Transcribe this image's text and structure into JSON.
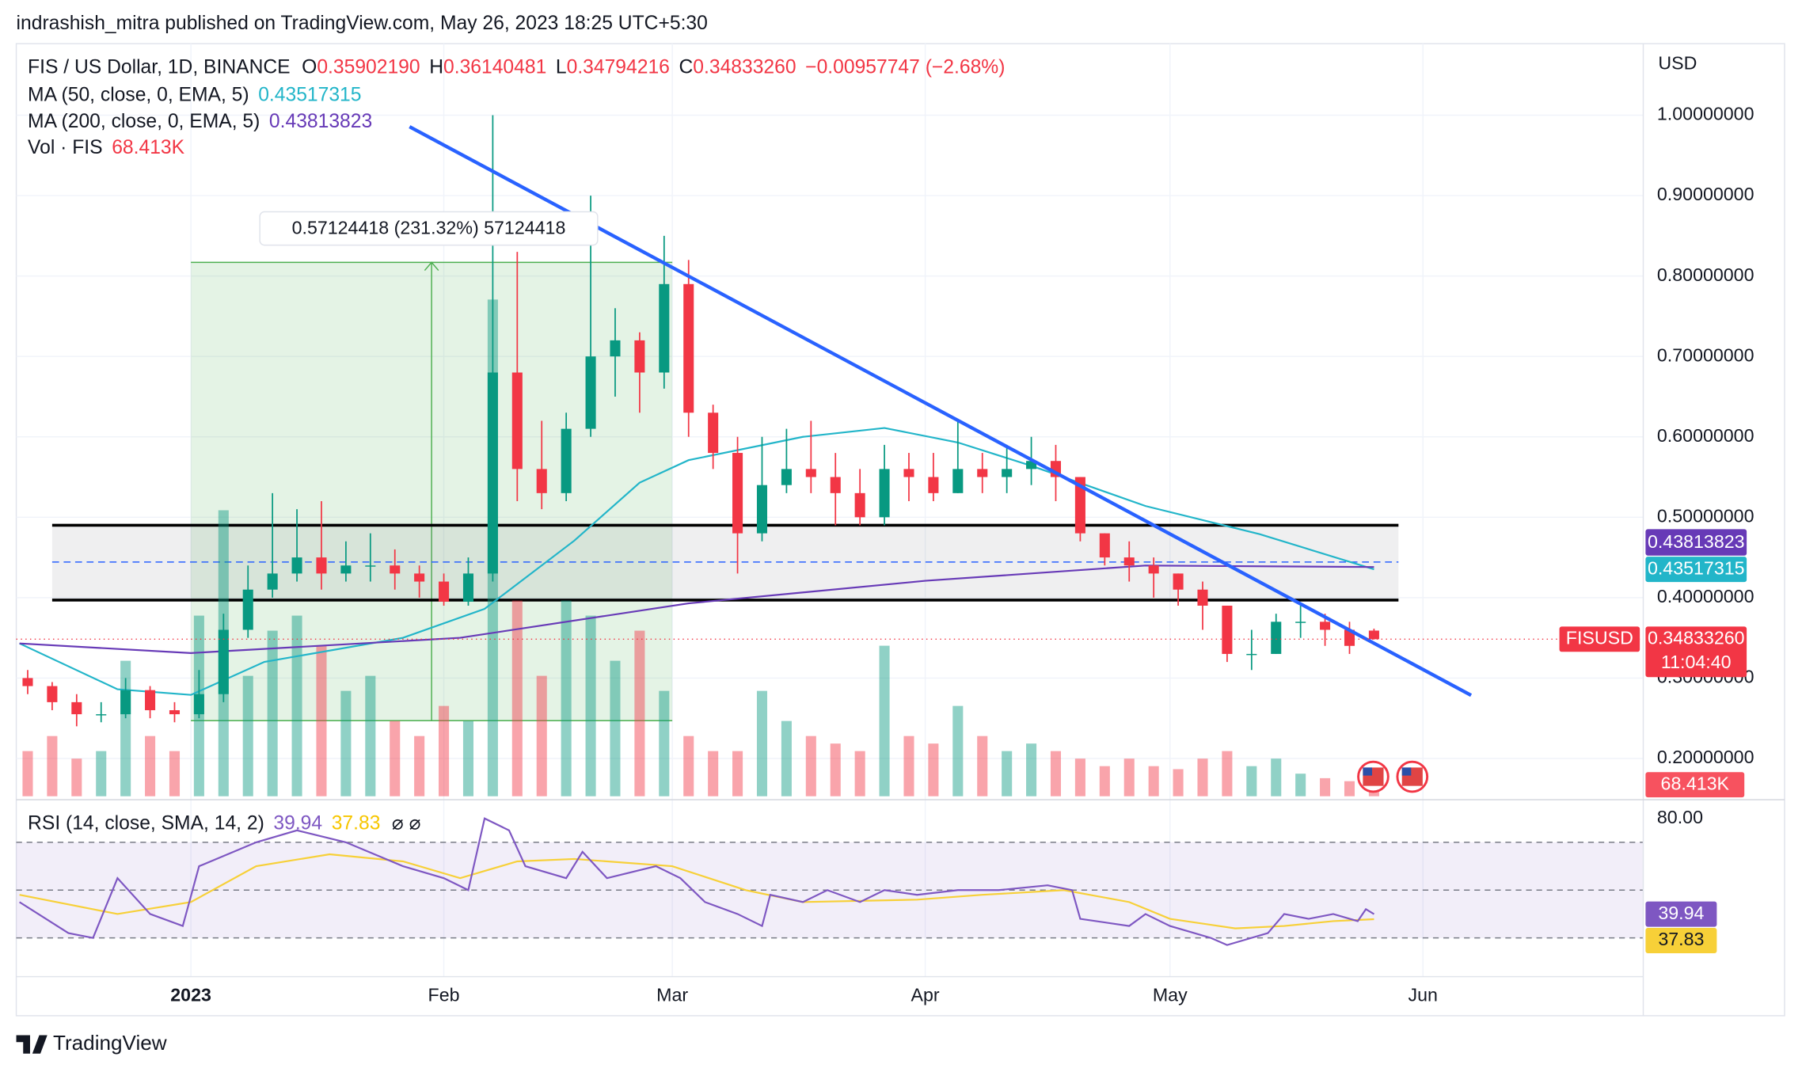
{
  "header": {
    "publisher": "indrashish_mitra published on TradingView.com, May 26, 2023 18:25 UTC+5:30",
    "brand": "TradingView"
  },
  "chart_data": {
    "type": "candlestick",
    "title": "FIS / US Dollar, 1D, BINANCE",
    "ohlc_legend": {
      "o_label": "O",
      "o": "0.35902190",
      "h_label": "H",
      "h": "0.36140481",
      "l_label": "L",
      "l": "0.34794216",
      "c_label": "C",
      "c": "0.34833260",
      "change": "−0.00957747 (−2.68%)"
    },
    "currency": "USD",
    "xlim": [
      -21.4,
      178
    ],
    "xticks": [
      {
        "value": 0,
        "label": "2023"
      },
      {
        "value": 31,
        "label": "Feb"
      },
      {
        "value": 59,
        "label": "Mar"
      },
      {
        "value": 90,
        "label": "Apr"
      },
      {
        "value": 120,
        "label": "May"
      },
      {
        "value": 151,
        "label": "Jun"
      }
    ],
    "ylim": [
      0.153,
      1.089
    ],
    "yticks": [
      {
        "value": 1.0,
        "label": "1.00000000"
      },
      {
        "value": 0.9,
        "label": "0.90000000"
      },
      {
        "value": 0.8,
        "label": "0.80000000"
      },
      {
        "value": 0.7,
        "label": "0.70000000"
      },
      {
        "value": 0.6,
        "label": "0.60000000"
      },
      {
        "value": 0.5,
        "label": "0.50000000"
      },
      {
        "value": 0.4,
        "label": "0.40000000"
      },
      {
        "value": 0.3,
        "label": "0.30000000"
      },
      {
        "value": 0.2,
        "label": "0.20000000"
      }
    ],
    "grid": true,
    "up_color": "#089981",
    "down_color": "#f23645",
    "candles": {
      "x": [
        -20,
        -17,
        -14,
        -11,
        -8,
        -5,
        -2,
        1,
        4,
        7,
        10,
        13,
        16,
        19,
        22,
        25,
        28,
        31,
        34,
        37,
        40,
        43,
        46,
        49,
        52,
        55,
        58,
        61,
        64,
        67,
        70,
        73,
        76,
        79,
        82,
        85,
        88,
        91,
        94,
        97,
        100,
        103,
        106,
        109,
        112,
        115,
        118,
        121,
        124,
        127,
        130,
        133,
        136,
        139,
        142,
        145
      ],
      "open": [
        0.3,
        0.29,
        0.27,
        0.255,
        0.255,
        0.285,
        0.26,
        0.255,
        0.28,
        0.36,
        0.41,
        0.43,
        0.45,
        0.43,
        0.44,
        0.44,
        0.43,
        0.42,
        0.395,
        0.43,
        0.68,
        0.56,
        0.53,
        0.61,
        0.7,
        0.72,
        0.68,
        0.79,
        0.63,
        0.58,
        0.48,
        0.54,
        0.56,
        0.55,
        0.53,
        0.5,
        0.56,
        0.55,
        0.53,
        0.56,
        0.55,
        0.56,
        0.57,
        0.55,
        0.48,
        0.45,
        0.44,
        0.43,
        0.41,
        0.39,
        0.33,
        0.33,
        0.37,
        0.37,
        0.36,
        0.3590219
      ],
      "high": [
        0.31,
        0.295,
        0.28,
        0.27,
        0.3,
        0.29,
        0.27,
        0.31,
        0.38,
        0.44,
        0.53,
        0.51,
        0.52,
        0.47,
        0.48,
        0.46,
        0.44,
        0.43,
        0.45,
        1.0,
        0.83,
        0.62,
        0.63,
        0.9,
        0.76,
        0.73,
        0.85,
        0.82,
        0.64,
        0.6,
        0.6,
        0.61,
        0.62,
        0.58,
        0.56,
        0.59,
        0.58,
        0.58,
        0.62,
        0.58,
        0.59,
        0.6,
        0.59,
        0.55,
        0.48,
        0.47,
        0.45,
        0.43,
        0.42,
        0.39,
        0.36,
        0.38,
        0.39,
        0.38,
        0.37,
        0.36140481
      ],
      "low": [
        0.28,
        0.26,
        0.24,
        0.245,
        0.25,
        0.25,
        0.245,
        0.25,
        0.27,
        0.35,
        0.4,
        0.42,
        0.41,
        0.42,
        0.42,
        0.41,
        0.4,
        0.39,
        0.39,
        0.42,
        0.52,
        0.51,
        0.52,
        0.6,
        0.65,
        0.63,
        0.66,
        0.6,
        0.56,
        0.43,
        0.47,
        0.53,
        0.53,
        0.49,
        0.49,
        0.49,
        0.52,
        0.52,
        0.53,
        0.53,
        0.53,
        0.54,
        0.52,
        0.47,
        0.44,
        0.42,
        0.4,
        0.39,
        0.36,
        0.32,
        0.31,
        0.33,
        0.35,
        0.34,
        0.33,
        0.34794216
      ],
      "close": [
        0.29,
        0.27,
        0.255,
        0.255,
        0.285,
        0.26,
        0.255,
        0.28,
        0.36,
        0.41,
        0.43,
        0.45,
        0.43,
        0.44,
        0.44,
        0.43,
        0.42,
        0.395,
        0.43,
        0.68,
        0.56,
        0.53,
        0.61,
        0.7,
        0.72,
        0.68,
        0.79,
        0.63,
        0.58,
        0.48,
        0.54,
        0.56,
        0.55,
        0.53,
        0.5,
        0.56,
        0.55,
        0.53,
        0.56,
        0.55,
        0.56,
        0.57,
        0.55,
        0.48,
        0.45,
        0.44,
        0.43,
        0.41,
        0.39,
        0.33,
        0.33,
        0.37,
        0.37,
        0.36,
        0.34,
        0.3483326
      ],
      "volume": [
        300000,
        400000,
        250000,
        300000,
        900000,
        400000,
        300000,
        1200000,
        1900000,
        800000,
        1100000,
        1200000,
        1000000,
        700000,
        800000,
        500000,
        400000,
        600000,
        500000,
        3300000,
        1300000,
        800000,
        1300000,
        1200000,
        900000,
        1100000,
        700000,
        400000,
        300000,
        300000,
        700000,
        500000,
        400000,
        350000,
        300000,
        1000000,
        400000,
        350000,
        600000,
        400000,
        300000,
        350000,
        300000,
        250000,
        200000,
        250000,
        200000,
        180000,
        250000,
        300000,
        200000,
        250000,
        150000,
        120000,
        100000,
        68413
      ]
    },
    "volume_name": "Vol · FIS",
    "volume_label": "68.413K",
    "volume_ylim": [
      0,
      5000000
    ],
    "series": [
      {
        "name": "MA (50, close, 0, EMA, 5)",
        "last_label": "0.43517315",
        "color": "#22b5c9",
        "x": [
          -21,
          -9,
          0,
          9,
          26,
          36,
          47,
          55,
          61,
          75,
          85,
          94,
          103,
          117,
          131,
          145
        ],
        "values": [
          0.343,
          0.286,
          0.279,
          0.32,
          0.35,
          0.386,
          0.471,
          0.543,
          0.571,
          0.6,
          0.611,
          0.593,
          0.564,
          0.514,
          0.479,
          0.43517315
        ]
      },
      {
        "name": "MA (200, close, 0, EMA, 5)",
        "last_label": "0.43813823",
        "color": "#673ab7",
        "x": [
          -21,
          0,
          33,
          61,
          90,
          117,
          145
        ],
        "values": [
          0.343,
          0.331,
          0.35,
          0.393,
          0.421,
          0.44,
          0.43813823
        ]
      }
    ],
    "last_price": {
      "symbol": "FISUSD",
      "value": 0.3483326,
      "label": "0.34833260",
      "countdown": "11:04:40"
    },
    "annotations": {
      "measure": {
        "label": "0.57124418 (231.32%) 57124418",
        "x": [
          0,
          59
        ],
        "y": [
          0.247,
          0.817
        ]
      },
      "trendline": {
        "x": [
          26.8,
          156.9
        ],
        "y": [
          0.9857,
          0.2786
        ]
      },
      "zone": {
        "x": [
          -17,
          148
        ],
        "y": [
          0.397,
          0.49
        ],
        "mid": 0.4443
      }
    },
    "rsi": {
      "name": "RSI (14, close, SMA, 14, 2)",
      "last_label": "39.94",
      "ma_last_label": "37.83",
      "extra": "⌀ ⌀",
      "color": "#7e57c2",
      "ma_color": "#f7d038",
      "ylim": [
        13.8,
        85.9
      ],
      "yticks": [
        {
          "value": 80,
          "label": "80.00"
        }
      ],
      "bands": [
        30,
        50,
        70
      ],
      "x": [
        -21,
        -15,
        -12,
        -9,
        -5,
        -1,
        1,
        8,
        13,
        19,
        26,
        31,
        34,
        36,
        39,
        41,
        46,
        48,
        51,
        57,
        60,
        63,
        67,
        70,
        71,
        75,
        78,
        82,
        85,
        89,
        94,
        99,
        105,
        108,
        109,
        115,
        117,
        120,
        125,
        127,
        132,
        134,
        137,
        140,
        143,
        144,
        145
      ],
      "values": [
        45,
        32,
        30,
        55,
        40,
        35,
        60,
        70,
        75,
        70,
        60,
        55,
        50,
        80,
        75,
        60,
        55,
        66,
        55,
        60,
        55,
        45,
        40,
        35,
        48,
        45,
        50,
        45,
        50,
        48,
        50,
        50,
        52,
        50,
        38,
        35,
        40,
        35,
        30,
        27,
        32,
        40,
        38,
        40,
        37,
        42,
        39.94
      ],
      "ma_x": [
        -21,
        -9,
        0,
        8,
        17,
        26,
        33,
        40,
        47,
        59,
        68,
        75,
        89,
        97,
        107,
        115,
        120,
        128,
        134,
        140,
        145
      ],
      "ma_values": [
        48,
        40,
        45,
        60,
        65,
        62,
        55,
        62,
        63,
        60,
        50,
        45,
        46,
        48,
        50,
        45,
        38,
        34,
        35,
        37,
        37.83
      ]
    }
  }
}
